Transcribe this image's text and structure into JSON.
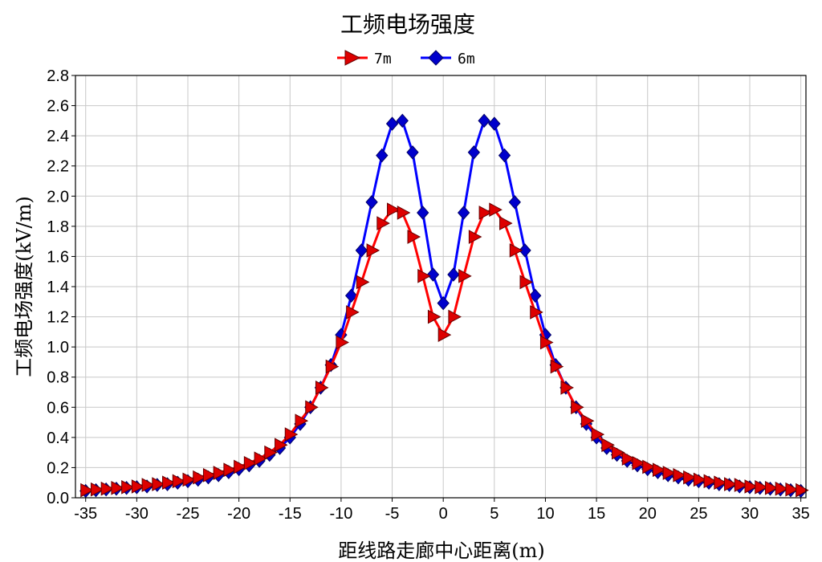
{
  "chart_data": {
    "type": "line",
    "title": "工频电场强度",
    "xlabel": "距线路走廊中心距离(m)",
    "ylabel": "工频电场强度(kV/m)",
    "xlim": [
      -36,
      35.5
    ],
    "ylim": [
      0,
      2.8
    ],
    "grid": true,
    "legend_position": "top-center",
    "xticks": [
      -35,
      -30,
      -25,
      -20,
      -15,
      -10,
      -5,
      0,
      5,
      10,
      15,
      20,
      25,
      30,
      35
    ],
    "yticks": [
      0.0,
      0.2,
      0.4,
      0.6,
      0.8,
      1.0,
      1.2,
      1.4,
      1.6,
      1.8,
      2.0,
      2.2,
      2.4,
      2.6,
      2.8
    ],
    "series": [
      {
        "name": "7m",
        "color": "#ff0000",
        "marker": "triangle-right",
        "x": [
          -35,
          -34,
          -33,
          -32,
          -31,
          -30,
          -29,
          -28,
          -27,
          -26,
          -25,
          -24,
          -23,
          -22,
          -21,
          -20,
          -19,
          -18,
          -17,
          -16,
          -15,
          -14,
          -13,
          -12,
          -11,
          -10,
          -9,
          -8,
          -7,
          -6,
          -5,
          -4,
          -3,
          -2,
          -1,
          0,
          1,
          2,
          3,
          4,
          5,
          6,
          7,
          8,
          9,
          10,
          11,
          12,
          13,
          14,
          15,
          16,
          17,
          18,
          19,
          20,
          21,
          22,
          23,
          24,
          25,
          26,
          27,
          28,
          29,
          30,
          31,
          32,
          33,
          34,
          35
        ],
        "y": [
          0.05,
          0.055,
          0.06,
          0.065,
          0.07,
          0.075,
          0.085,
          0.09,
          0.1,
          0.11,
          0.12,
          0.135,
          0.15,
          0.165,
          0.185,
          0.205,
          0.23,
          0.26,
          0.3,
          0.35,
          0.42,
          0.51,
          0.6,
          0.73,
          0.87,
          1.03,
          1.23,
          1.43,
          1.64,
          1.82,
          1.91,
          1.89,
          1.73,
          1.47,
          1.2,
          1.08,
          1.2,
          1.47,
          1.73,
          1.89,
          1.91,
          1.82,
          1.64,
          1.43,
          1.23,
          1.03,
          0.87,
          0.73,
          0.6,
          0.51,
          0.42,
          0.35,
          0.3,
          0.26,
          0.23,
          0.205,
          0.185,
          0.165,
          0.15,
          0.135,
          0.12,
          0.11,
          0.1,
          0.09,
          0.085,
          0.075,
          0.07,
          0.065,
          0.06,
          0.055,
          0.05
        ]
      },
      {
        "name": "6m",
        "color": "#0000ff",
        "marker": "diamond",
        "x": [
          -35,
          -34,
          -33,
          -32,
          -31,
          -30,
          -29,
          -28,
          -27,
          -26,
          -25,
          -24,
          -23,
          -22,
          -21,
          -20,
          -19,
          -18,
          -17,
          -16,
          -15,
          -14,
          -13,
          -12,
          -11,
          -10,
          -9,
          -8,
          -7,
          -6,
          -5,
          -4,
          -3,
          -2,
          -1,
          0,
          1,
          2,
          3,
          4,
          5,
          6,
          7,
          8,
          9,
          10,
          11,
          12,
          13,
          14,
          15,
          16,
          17,
          18,
          19,
          20,
          21,
          22,
          23,
          24,
          25,
          26,
          27,
          28,
          29,
          30,
          31,
          32,
          33,
          34,
          35
        ],
        "y": [
          0.045,
          0.05,
          0.055,
          0.06,
          0.065,
          0.07,
          0.075,
          0.085,
          0.09,
          0.1,
          0.11,
          0.12,
          0.135,
          0.15,
          0.17,
          0.19,
          0.215,
          0.245,
          0.285,
          0.33,
          0.4,
          0.49,
          0.6,
          0.73,
          0.88,
          1.08,
          1.34,
          1.64,
          1.96,
          2.27,
          2.48,
          2.5,
          2.29,
          1.89,
          1.48,
          1.29,
          1.48,
          1.89,
          2.29,
          2.5,
          2.48,
          2.27,
          1.96,
          1.64,
          1.34,
          1.08,
          0.88,
          0.73,
          0.6,
          0.49,
          0.4,
          0.33,
          0.285,
          0.245,
          0.215,
          0.19,
          0.17,
          0.15,
          0.135,
          0.12,
          0.11,
          0.1,
          0.09,
          0.085,
          0.075,
          0.07,
          0.065,
          0.06,
          0.055,
          0.05,
          0.045
        ]
      }
    ]
  }
}
